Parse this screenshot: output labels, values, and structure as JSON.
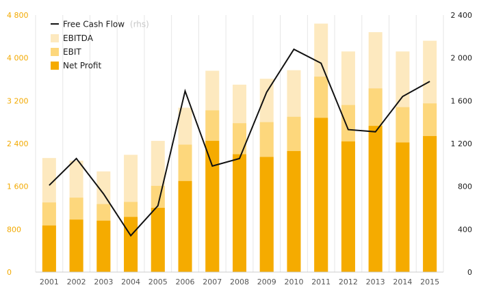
{
  "chart_data": {
    "type": "bar",
    "subtype": "stacked-overlap with line on secondary axis",
    "categories": [
      "2001",
      "2002",
      "2003",
      "2004",
      "2005",
      "2006",
      "2007",
      "2008",
      "2009",
      "2010",
      "2011",
      "2012",
      "2013",
      "2014",
      "2015"
    ],
    "series": [
      {
        "name": "EBITDA",
        "kind": "bar",
        "axis": "left",
        "color": "#fde9bf",
        "values": [
          2130,
          2080,
          1880,
          2190,
          2450,
          3070,
          3760,
          3500,
          3610,
          3770,
          4640,
          4120,
          4480,
          4120,
          4320
        ]
      },
      {
        "name": "EBIT",
        "kind": "bar",
        "axis": "left",
        "color": "#fdd77c",
        "values": [
          1300,
          1390,
          1270,
          1310,
          1610,
          2380,
          3020,
          2780,
          2800,
          2900,
          3650,
          3120,
          3430,
          3080,
          3150
        ]
      },
      {
        "name": "Net Profit",
        "kind": "bar",
        "axis": "left",
        "color": "#f5ab00",
        "values": [
          870,
          980,
          960,
          1030,
          1200,
          1700,
          2450,
          2200,
          2150,
          2260,
          2880,
          2440,
          2730,
          2420,
          2540
        ]
      },
      {
        "name": "Free Cash Flow",
        "kind": "line",
        "axis": "right",
        "color": "#111111",
        "values": [
          810,
          1060,
          730,
          340,
          620,
          1690,
          990,
          1060,
          1680,
          2080,
          1950,
          1330,
          1310,
          1640,
          1780
        ]
      }
    ],
    "legend_note": "(rhs)",
    "left_axis": {
      "min": 0,
      "max": 4800,
      "ticks": [
        0,
        800,
        1600,
        2400,
        3200,
        4000,
        4800
      ],
      "tick_labels": [
        "0",
        "800",
        "1 600",
        "2 400",
        "3 200",
        "4 000",
        "4 800"
      ]
    },
    "right_axis": {
      "min": 0,
      "max": 2400,
      "ticks": [
        0,
        400,
        800,
        1200,
        1600,
        2000,
        2400
      ],
      "tick_labels": [
        "0",
        "400",
        "800",
        "1 200",
        "1 600",
        "2 000",
        "2 400"
      ]
    },
    "grid": "vertical lines between categories",
    "legend_position": "top-left",
    "colors": {
      "left_axis": "#f2a900",
      "right_axis": "#1a1a1a",
      "grid": "#e6e6e6"
    }
  }
}
